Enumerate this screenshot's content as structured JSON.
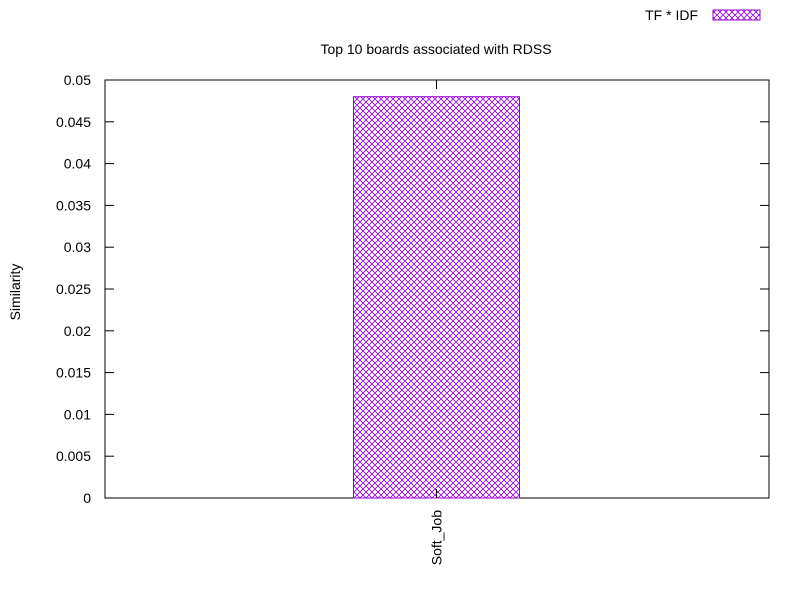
{
  "chart_data": {
    "type": "bar",
    "title": "Top 10 boards associated with RDSS",
    "xlabel": "",
    "ylabel": "Similarity",
    "categories": [
      "Soft_Job"
    ],
    "series": [
      {
        "name": "TF * IDF",
        "values": [
          0.048
        ]
      }
    ],
    "ylim": [
      0,
      0.05
    ],
    "yticks": [
      0,
      0.005,
      0.01,
      0.015,
      0.02,
      0.025,
      0.03,
      0.035,
      0.04,
      0.045,
      0.05
    ],
    "ytick_labels": [
      "0",
      "0.005",
      "0.01",
      "0.015",
      "0.02",
      "0.025",
      "0.03",
      "0.035",
      "0.04",
      "0.045",
      "0.05"
    ],
    "grid": false,
    "legend_position": "top-right",
    "bar_fill": "crosshatch",
    "colors": {
      "series": "#9400d3",
      "axis": "#000000",
      "background": "#ffffff"
    }
  }
}
